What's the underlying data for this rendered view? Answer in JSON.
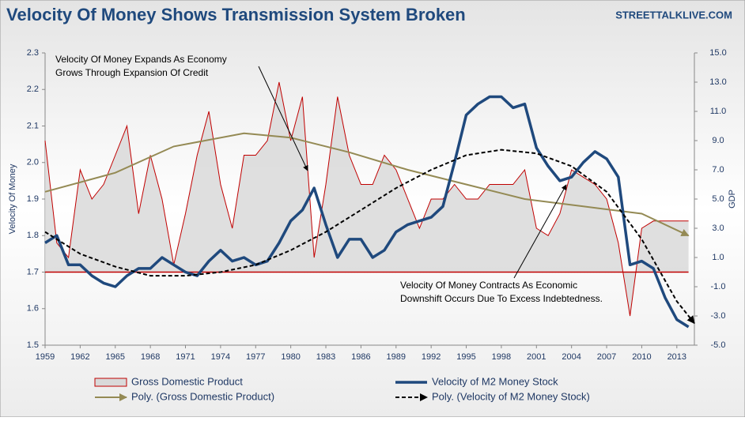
{
  "chart_data": {
    "type": "line",
    "title": "Velocity Of Money Shows Transmission System Broken",
    "source": "STREETTALKLIVE.COM",
    "y_label": "Velocity Of Money",
    "y2_label": "GDP",
    "xlim": [
      1959,
      2014.5
    ],
    "xticks": [
      1959,
      1962,
      1965,
      1968,
      1971,
      1974,
      1977,
      1980,
      1983,
      1986,
      1989,
      1992,
      1995,
      1998,
      2001,
      2004,
      2007,
      2010,
      2013
    ],
    "ylim": [
      1.5,
      2.3
    ],
    "yticks": [
      1.5,
      1.6,
      1.7,
      1.8,
      1.9,
      {
        "value": 2,
        "label": "2.0"
      },
      2.1,
      2.2,
      2.3
    ],
    "y2lim": [
      -5,
      15
    ],
    "y2ticks": [
      {
        "value": -5,
        "label": "-5.0"
      },
      {
        "value": -3,
        "label": "-3.0"
      },
      {
        "value": -1,
        "label": "-1.0"
      },
      {
        "value": 1,
        "label": "1.0"
      },
      {
        "value": 3,
        "label": "3.0"
      },
      {
        "value": 5,
        "label": "5.0"
      },
      {
        "value": 7,
        "label": "7.0"
      },
      {
        "value": 9,
        "label": "9.0"
      },
      {
        "value": 11,
        "label": "11.0"
      },
      {
        "value": 13,
        "label": "13.0"
      },
      {
        "value": 15,
        "label": "15.0"
      }
    ],
    "series": [
      {
        "name": "Gross Domestic Product",
        "color": "#c00000",
        "style": "area",
        "axis": "y2",
        "x": [
          1959,
          1960,
          1961,
          1962,
          1963,
          1964,
          1965,
          1966,
          1967,
          1968,
          1969,
          1970,
          1971,
          1972,
          1973,
          1974,
          1975,
          1976,
          1977,
          1978,
          1979,
          1980,
          1981,
          1982,
          1983,
          1984,
          1985,
          1986,
          1987,
          1988,
          1989,
          1990,
          1991,
          1992,
          1993,
          1994,
          1995,
          1996,
          1997,
          1998,
          1999,
          2000,
          2001,
          2002,
          2003,
          2004,
          2005,
          2006,
          2007,
          2008,
          2009,
          2010,
          2011,
          2012,
          2013,
          2014
        ],
        "values": [
          9,
          2,
          1,
          7,
          5,
          6,
          8,
          10,
          4,
          8,
          5,
          0.5,
          4,
          8,
          11,
          6,
          3,
          8,
          8,
          9,
          13,
          9,
          12,
          1,
          6,
          12,
          8,
          6,
          6,
          8,
          7,
          5,
          3,
          5,
          5,
          6,
          5,
          5,
          6,
          6,
          6,
          7,
          3,
          2.5,
          4,
          7,
          6.5,
          6,
          5,
          2,
          -3,
          3,
          3.5,
          3.5,
          3.5,
          3.5
        ]
      },
      {
        "name": "Velocity of M2 Money Stock",
        "color": "#1f497d",
        "style": "line",
        "x": [
          1959,
          1960,
          1961,
          1962,
          1963,
          1964,
          1965,
          1966,
          1967,
          1968,
          1969,
          1970,
          1971,
          1972,
          1973,
          1974,
          1975,
          1976,
          1977,
          1978,
          1979,
          1980,
          1981,
          1982,
          1983,
          1984,
          1985,
          1986,
          1987,
          1988,
          1989,
          1990,
          1991,
          1992,
          1993,
          1994,
          1995,
          1996,
          1997,
          1998,
          1999,
          2000,
          2001,
          2002,
          2003,
          2004,
          2005,
          2006,
          2007,
          2008,
          2009,
          2010,
          2011,
          2012,
          2013,
          2014
        ],
        "values": [
          1.78,
          1.8,
          1.72,
          1.72,
          1.69,
          1.67,
          1.66,
          1.69,
          1.71,
          1.71,
          1.74,
          1.72,
          1.7,
          1.69,
          1.73,
          1.76,
          1.73,
          1.74,
          1.72,
          1.73,
          1.78,
          1.84,
          1.87,
          1.93,
          1.83,
          1.74,
          1.79,
          1.79,
          1.74,
          1.76,
          1.81,
          1.83,
          1.84,
          1.85,
          1.88,
          2.0,
          2.13,
          2.16,
          2.18,
          2.18,
          2.15,
          2.16,
          2.04,
          1.99,
          1.95,
          1.96,
          2.0,
          2.03,
          2.01,
          1.96,
          1.72,
          1.73,
          1.71,
          1.63,
          1.57,
          1.55
        ]
      },
      {
        "name": "Poly. (Gross Domestic Product)",
        "color": "#948a54",
        "style": "trend",
        "axis": "y2",
        "x": [
          1959,
          1965,
          1970,
          1976,
          1980,
          1985,
          1990,
          1995,
          2000,
          2005,
          2010,
          2014
        ],
        "values": [
          5.5,
          6.8,
          8.6,
          9.5,
          9.2,
          8.2,
          7.0,
          6.0,
          5.0,
          4.5,
          4.0,
          2.5
        ]
      },
      {
        "name": "Poly. (Velocity of M2 Money Stock)",
        "color": "#000000",
        "style": "dashed",
        "x": [
          1959,
          1962,
          1965,
          1968,
          1971,
          1974,
          1977,
          1980,
          1983,
          1986,
          1989,
          1992,
          1995,
          1998,
          2001,
          2004,
          2007,
          2010,
          2013,
          2014.5
        ],
        "values": [
          1.81,
          1.75,
          1.715,
          1.69,
          1.69,
          1.7,
          1.72,
          1.76,
          1.81,
          1.87,
          1.93,
          1.98,
          2.02,
          2.035,
          2.025,
          1.99,
          1.92,
          1.79,
          1.62,
          1.56
        ]
      }
    ],
    "annotations": [
      {
        "lines": [
          "Velocity Of Money Expands As Economy",
          "Grows Through Expansion Of Credit"
        ]
      },
      {
        "lines": [
          "Velocity Of Money Contracts As Economic",
          "Downshift Occurs Due To Excess Indebtedness."
        ]
      }
    ]
  }
}
